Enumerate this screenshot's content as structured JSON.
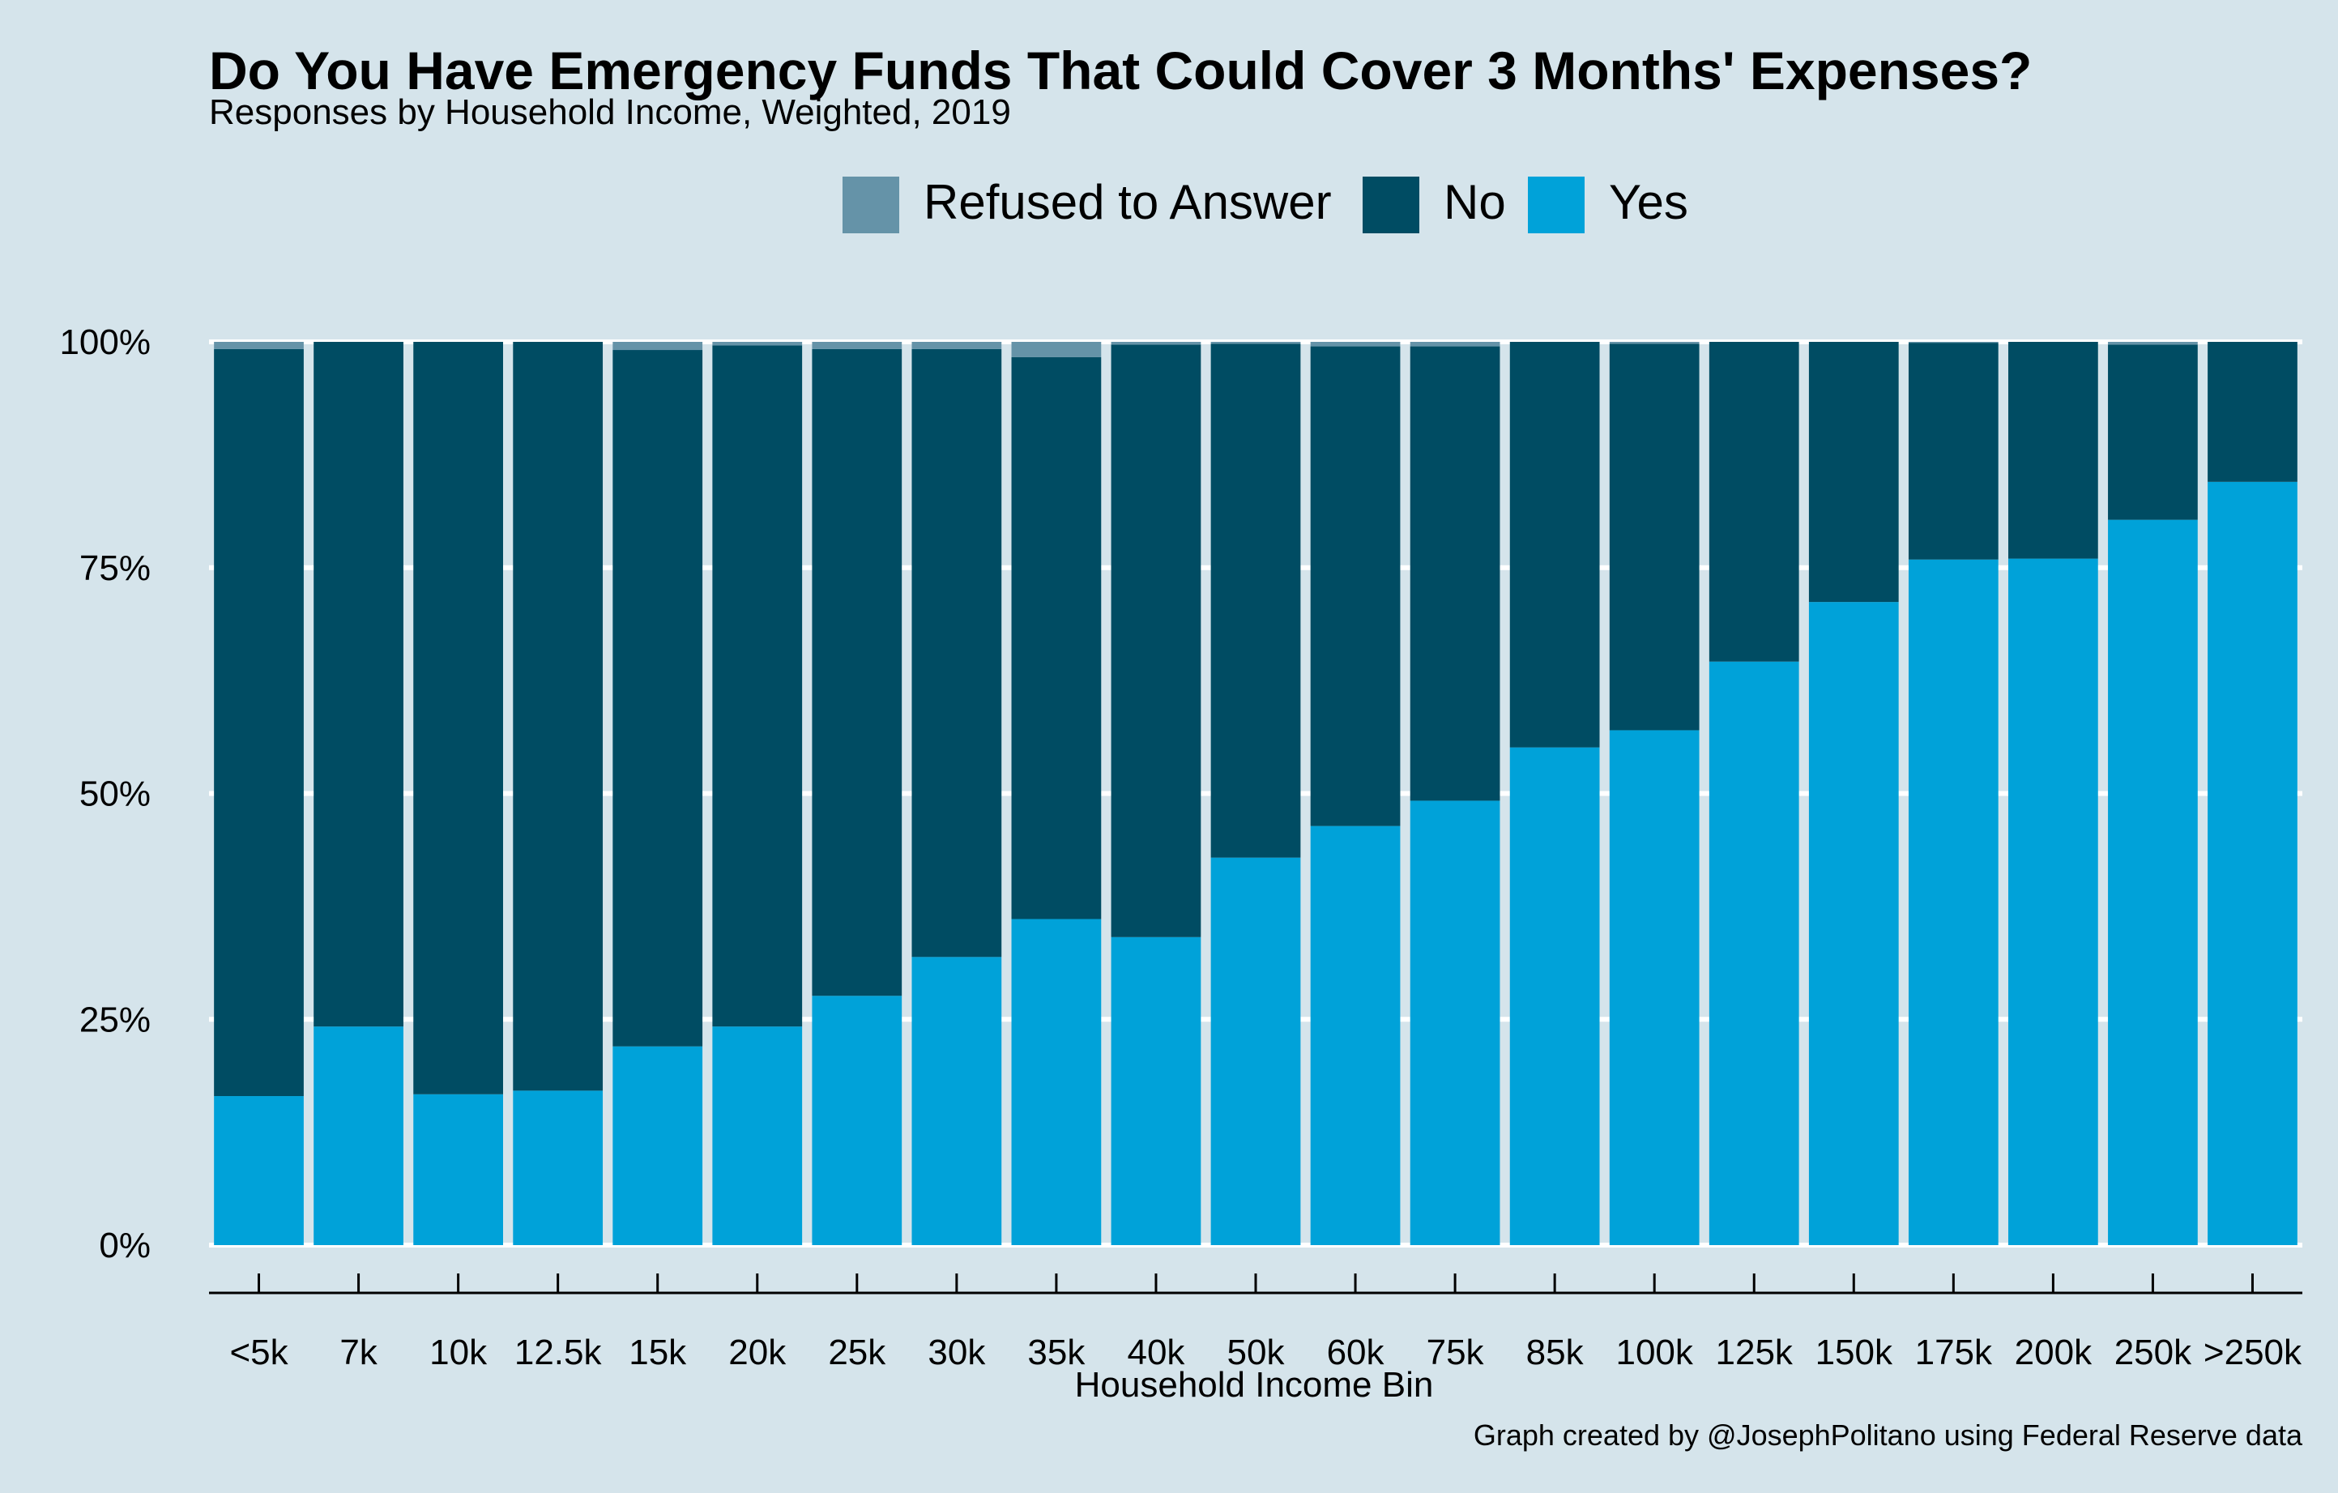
{
  "chart_data": {
    "type": "bar",
    "stacked": true,
    "title": "Do You Have Emergency Funds That Could Cover 3 Months' Expenses?",
    "subtitle": "Responses by Household Income, Weighted, 2019",
    "xlabel": "Household Income Bin",
    "ylabel": "",
    "caption": "Graph created by @JosephPolitano using Federal Reserve data",
    "ylim": [
      0,
      100
    ],
    "yticks": [
      0,
      25,
      50,
      75,
      100
    ],
    "ytick_labels": [
      "0%",
      "25%",
      "50%",
      "75%",
      "100%"
    ],
    "grid": "horizontal",
    "legend_position": "top",
    "categories": [
      "<5k",
      "7k",
      "10k",
      "12.5k",
      "15k",
      "20k",
      "25k",
      "30k",
      "35k",
      "40k",
      "50k",
      "60k",
      "75k",
      "85k",
      "100k",
      "125k",
      "150k",
      "175k",
      "200k",
      "250k",
      ">250k"
    ],
    "series": [
      {
        "name": "Yes",
        "color": "#00a2d9",
        "values": [
          16.5,
          24.2,
          16.7,
          17.1,
          22.0,
          24.2,
          27.6,
          31.9,
          36.1,
          34.1,
          42.9,
          46.4,
          49.2,
          55.1,
          57.0,
          64.6,
          71.2,
          75.9,
          76.0,
          80.3,
          84.5
        ]
      },
      {
        "name": "No",
        "color": "#004c63",
        "values": [
          82.7,
          75.8,
          83.3,
          82.9,
          77.1,
          75.4,
          71.6,
          67.3,
          62.2,
          65.6,
          56.9,
          53.1,
          50.3,
          44.9,
          42.8,
          35.4,
          28.8,
          24.0,
          24.0,
          19.4,
          15.5
        ]
      },
      {
        "name": "Refused to Answer",
        "color": "#6593a8",
        "values": [
          0.8,
          0.0,
          0.0,
          0.0,
          0.9,
          0.4,
          0.8,
          0.8,
          1.7,
          0.3,
          0.2,
          0.5,
          0.5,
          0.0,
          0.2,
          0.0,
          0.0,
          0.1,
          0.0,
          0.3,
          0.0
        ]
      }
    ],
    "legend_order": [
      "Refused to Answer",
      "No",
      "Yes"
    ]
  }
}
